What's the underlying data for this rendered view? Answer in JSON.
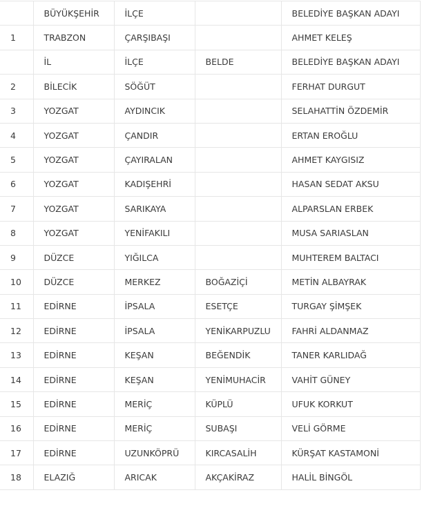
{
  "rows": [
    [
      "",
      "BÜYÜKŞEHİR",
      "İLÇE",
      "",
      "BELEDİYE BAŞKAN ADAYI"
    ],
    [
      "1",
      "TRABZON",
      "ÇARŞIBAŞI",
      "",
      "AHMET KELEŞ"
    ],
    [
      "",
      "İL",
      "İLÇE",
      "BELDE",
      "BELEDİYE BAŞKAN ADAYI"
    ],
    [
      "2",
      "BİLECİK",
      "SÖĞÜT",
      "",
      "FERHAT DURGUT"
    ],
    [
      "3",
      "YOZGAT",
      "AYDINCIK",
      "",
      "SELAHATTİN ÖZDEMİR"
    ],
    [
      "4",
      "YOZGAT",
      "ÇANDIR",
      "",
      "ERTAN EROĞLU"
    ],
    [
      "5",
      "YOZGAT",
      "ÇAYIRALAN",
      "",
      "AHMET KAYGISIZ"
    ],
    [
      "6",
      "YOZGAT",
      "KADIŞEHRİ",
      "",
      "HASAN SEDAT AKSU"
    ],
    [
      "7",
      "YOZGAT",
      "SARIKAYA",
      "",
      "ALPARSLAN ERBEK"
    ],
    [
      "8",
      "YOZGAT",
      "YENİFAKILI",
      "",
      "MUSA SARIASLAN"
    ],
    [
      "9",
      "DÜZCE",
      "YIĞILCA",
      "",
      "MUHTEREM BALTACI"
    ],
    [
      "10",
      "DÜZCE",
      "MERKEZ",
      "BOĞAZİÇİ",
      "METİN ALBAYRAK"
    ],
    [
      "11",
      "EDİRNE",
      "İPSALA",
      "ESETÇE",
      "TURGAY ŞİMŞEK"
    ],
    [
      "12",
      "EDİRNE",
      "İPSALA",
      "YENİKARPUZLU",
      "FAHRİ ALDANMAZ"
    ],
    [
      "13",
      "EDİRNE",
      "KEŞAN",
      "BEĞENDİK",
      "TANER KARLIDAĞ"
    ],
    [
      "14",
      "EDİRNE",
      "KEŞAN",
      "YENİMUHACİR",
      "VAHİT GÜNEY"
    ],
    [
      "15",
      "EDİRNE",
      "MERİÇ",
      "KÜPLÜ",
      "UFUK KORKUT"
    ],
    [
      "16",
      "EDİRNE",
      "MERİÇ",
      "SUBAŞI",
      "VELİ GÖRME"
    ],
    [
      "17",
      "EDİRNE",
      "UZUNKÖPRÜ",
      "KIRCASALİH",
      "KÜRŞAT KASTAMONİ"
    ],
    [
      "18",
      "ELAZIĞ",
      "ARICAK",
      "AKÇAKİRAZ",
      "HALİL BİNGÖL"
    ]
  ]
}
